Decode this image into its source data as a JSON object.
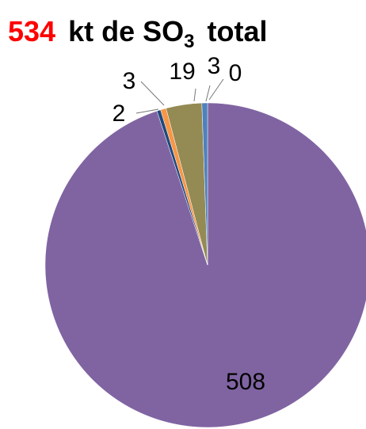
{
  "chart_data": {
    "type": "pie",
    "title": {
      "total": 534,
      "text": "kt de SO",
      "subscript": "3",
      "suffix": "total"
    },
    "values": [
      508,
      2,
      3,
      19,
      3,
      0
    ],
    "colors": [
      "#8064a2",
      "#1f497d",
      "#f79646",
      "#948a54",
      "#4f81bd",
      "#c0504d"
    ]
  }
}
